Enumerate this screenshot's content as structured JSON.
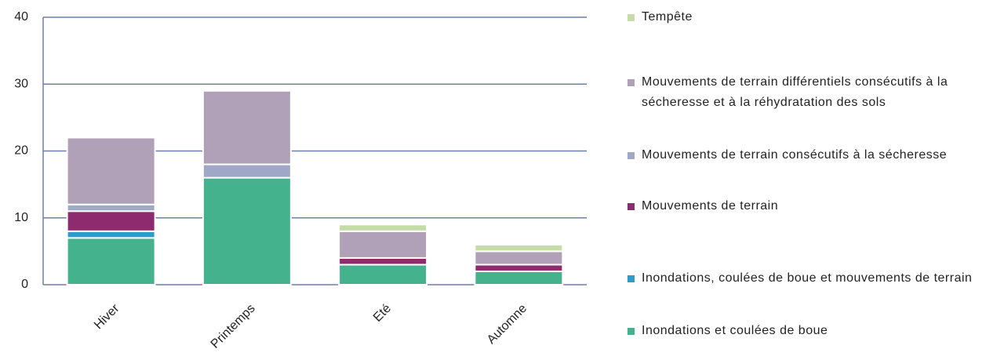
{
  "chart_data": {
    "type": "stacked_bar",
    "categories": [
      "Hiver",
      "Printemps",
      "Eté",
      "Automne"
    ],
    "series": [
      {
        "name": "Inondations et coulées de boue",
        "color": "#44b28c",
        "values": [
          7,
          16,
          3,
          2
        ]
      },
      {
        "name": "Inondations, coulées de boue et mouvements de terrain",
        "color": "#2e9bc8",
        "values": [
          1,
          0,
          0,
          0
        ]
      },
      {
        "name": "Mouvements de terrain",
        "color": "#8e2a6e",
        "values": [
          3,
          0,
          1,
          1
        ]
      },
      {
        "name": "Mouvements de terrain consécutifs à la sécheresse",
        "color": "#a0a8c8",
        "values": [
          1,
          2,
          0,
          0
        ]
      },
      {
        "name": "Mouvements de terrain différentiels consécutifs à la sécheresse et à la réhydratation des sols",
        "color": "#b0a0b8",
        "values": [
          10,
          11,
          4,
          2
        ]
      },
      {
        "name": "Tempête",
        "color": "#c4dca8",
        "values": [
          0,
          0,
          1,
          1
        ]
      }
    ],
    "ylim": [
      0,
      40
    ],
    "yticks": [
      0,
      10,
      20,
      30,
      40
    ],
    "grid": true,
    "legend": "right"
  }
}
